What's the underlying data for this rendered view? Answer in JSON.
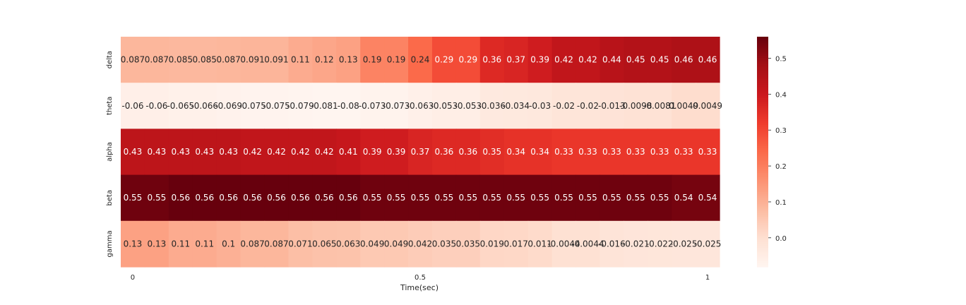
{
  "chart_data": {
    "type": "heatmap",
    "title": "",
    "xlabel": "Time(sec)",
    "ylabel": "",
    "rows": [
      "delta",
      "theta",
      "alpha",
      "beta",
      "gamma"
    ],
    "x_ticks": [
      {
        "label": "0",
        "col": 0
      },
      {
        "label": "0.5",
        "col": 12
      },
      {
        "label": "1",
        "col": 24
      }
    ],
    "values": [
      [
        0.087,
        0.087,
        0.085,
        0.085,
        0.087,
        0.091,
        0.091,
        0.11,
        0.12,
        0.13,
        0.19,
        0.19,
        0.24,
        0.29,
        0.29,
        0.36,
        0.37,
        0.39,
        0.42,
        0.42,
        0.44,
        0.45,
        0.45,
        0.46,
        0.46
      ],
      [
        -0.06,
        -0.06,
        -0.065,
        -0.066,
        -0.069,
        -0.075,
        -0.075,
        -0.079,
        -0.081,
        -0.08,
        -0.073,
        -0.073,
        -0.063,
        -0.053,
        -0.053,
        -0.036,
        -0.034,
        -0.03,
        -0.02,
        -0.02,
        -0.013,
        -0.0098,
        -0.0081,
        0.0049,
        0.0049
      ],
      [
        0.43,
        0.43,
        0.43,
        0.43,
        0.43,
        0.42,
        0.42,
        0.42,
        0.42,
        0.41,
        0.39,
        0.39,
        0.37,
        0.36,
        0.36,
        0.35,
        0.34,
        0.34,
        0.33,
        0.33,
        0.33,
        0.33,
        0.33,
        0.33,
        0.33
      ],
      [
        0.55,
        0.55,
        0.56,
        0.56,
        0.56,
        0.56,
        0.56,
        0.56,
        0.56,
        0.56,
        0.55,
        0.55,
        0.55,
        0.55,
        0.55,
        0.55,
        0.55,
        0.55,
        0.55,
        0.55,
        0.55,
        0.55,
        0.55,
        0.54,
        0.54
      ],
      [
        0.13,
        0.13,
        0.11,
        0.11,
        0.1,
        0.087,
        0.087,
        0.071,
        0.065,
        0.063,
        0.049,
        0.049,
        0.042,
        0.035,
        0.035,
        0.019,
        0.017,
        0.011,
        -0.0044,
        -0.0044,
        -0.016,
        -0.021,
        -0.022,
        -0.025,
        -0.025
      ]
    ],
    "color_scale": {
      "colormap": "Reds",
      "vmin": -0.081,
      "vmax": 0.56,
      "ticks": [
        "0.0",
        "0.1",
        "0.2",
        "0.3",
        "0.4",
        "0.5"
      ],
      "tick_values": [
        0.0,
        0.1,
        0.2,
        0.3,
        0.4,
        0.5
      ]
    },
    "colors": {
      "reds_stops": [
        "#fff5f0",
        "#fee0d2",
        "#fcbba1",
        "#fc9272",
        "#fb6a4a",
        "#ef3b2c",
        "#cb181d",
        "#a50f15",
        "#67000d"
      ],
      "text_dark": "#262626",
      "text_light": "#ffffff"
    },
    "grid": false,
    "legend": "colorbar-right"
  }
}
